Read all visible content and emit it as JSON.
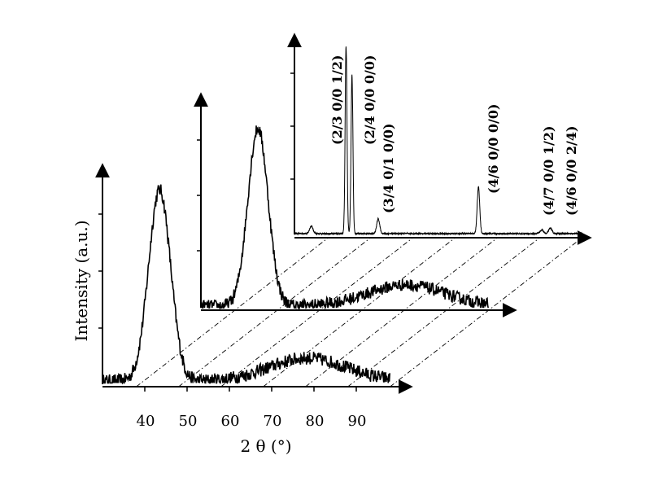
{
  "chart_data": {
    "type": "line",
    "layout": "3D stacked / offset waterfall of three XRD patterns with dash-dot guide lines",
    "xlabel": "2 θ (°)",
    "ylabel": "Intensity (a.u.)",
    "x_ticks": [
      "40",
      "50",
      "60",
      "70",
      "80",
      "90"
    ],
    "xlim": [
      30,
      98
    ],
    "grid": false,
    "legend": "none",
    "series": [
      {
        "kind": "broad",
        "peaks": [
          {
            "center": 43.5,
            "height": 1.0,
            "width": 2.6
          },
          {
            "center": 78.5,
            "height": 0.12,
            "width": 9
          }
        ],
        "noise": 0.035
      },
      {
        "kind": "broad",
        "peaks": [
          {
            "center": 43.5,
            "height": 1.0,
            "width": 2.4
          },
          {
            "center": 78.5,
            "height": 0.12,
            "width": 9
          }
        ],
        "noise": 0.035
      },
      {
        "kind": "crystalline",
        "peaks": [
          {
            "center": 42.2,
            "height": 1.0,
            "width": 0.22
          },
          {
            "center": 43.6,
            "height": 0.85,
            "width": 0.22
          },
          {
            "center": 49.8,
            "height": 0.08,
            "width": 0.35
          },
          {
            "center": 73.5,
            "height": 0.25,
            "width": 0.3
          },
          {
            "center": 88.5,
            "height": 0.02,
            "width": 0.4
          },
          {
            "center": 90.5,
            "height": 0.03,
            "width": 0.4
          },
          {
            "center": 34.0,
            "height": 0.04,
            "width": 0.4
          }
        ],
        "noise": 0.004
      }
    ],
    "annotations": [
      {
        "text": "(2/3 0/0 1/2)"
      },
      {
        "text": "(2/4 0/0 0/0)"
      },
      {
        "text": "(3/4 0/1 0/0)"
      },
      {
        "text": "(4/6 0/0 0/0)"
      },
      {
        "text": "(4/7 0/0 1/2)"
      },
      {
        "text": "(4/6 0/0 2/4)"
      }
    ]
  }
}
